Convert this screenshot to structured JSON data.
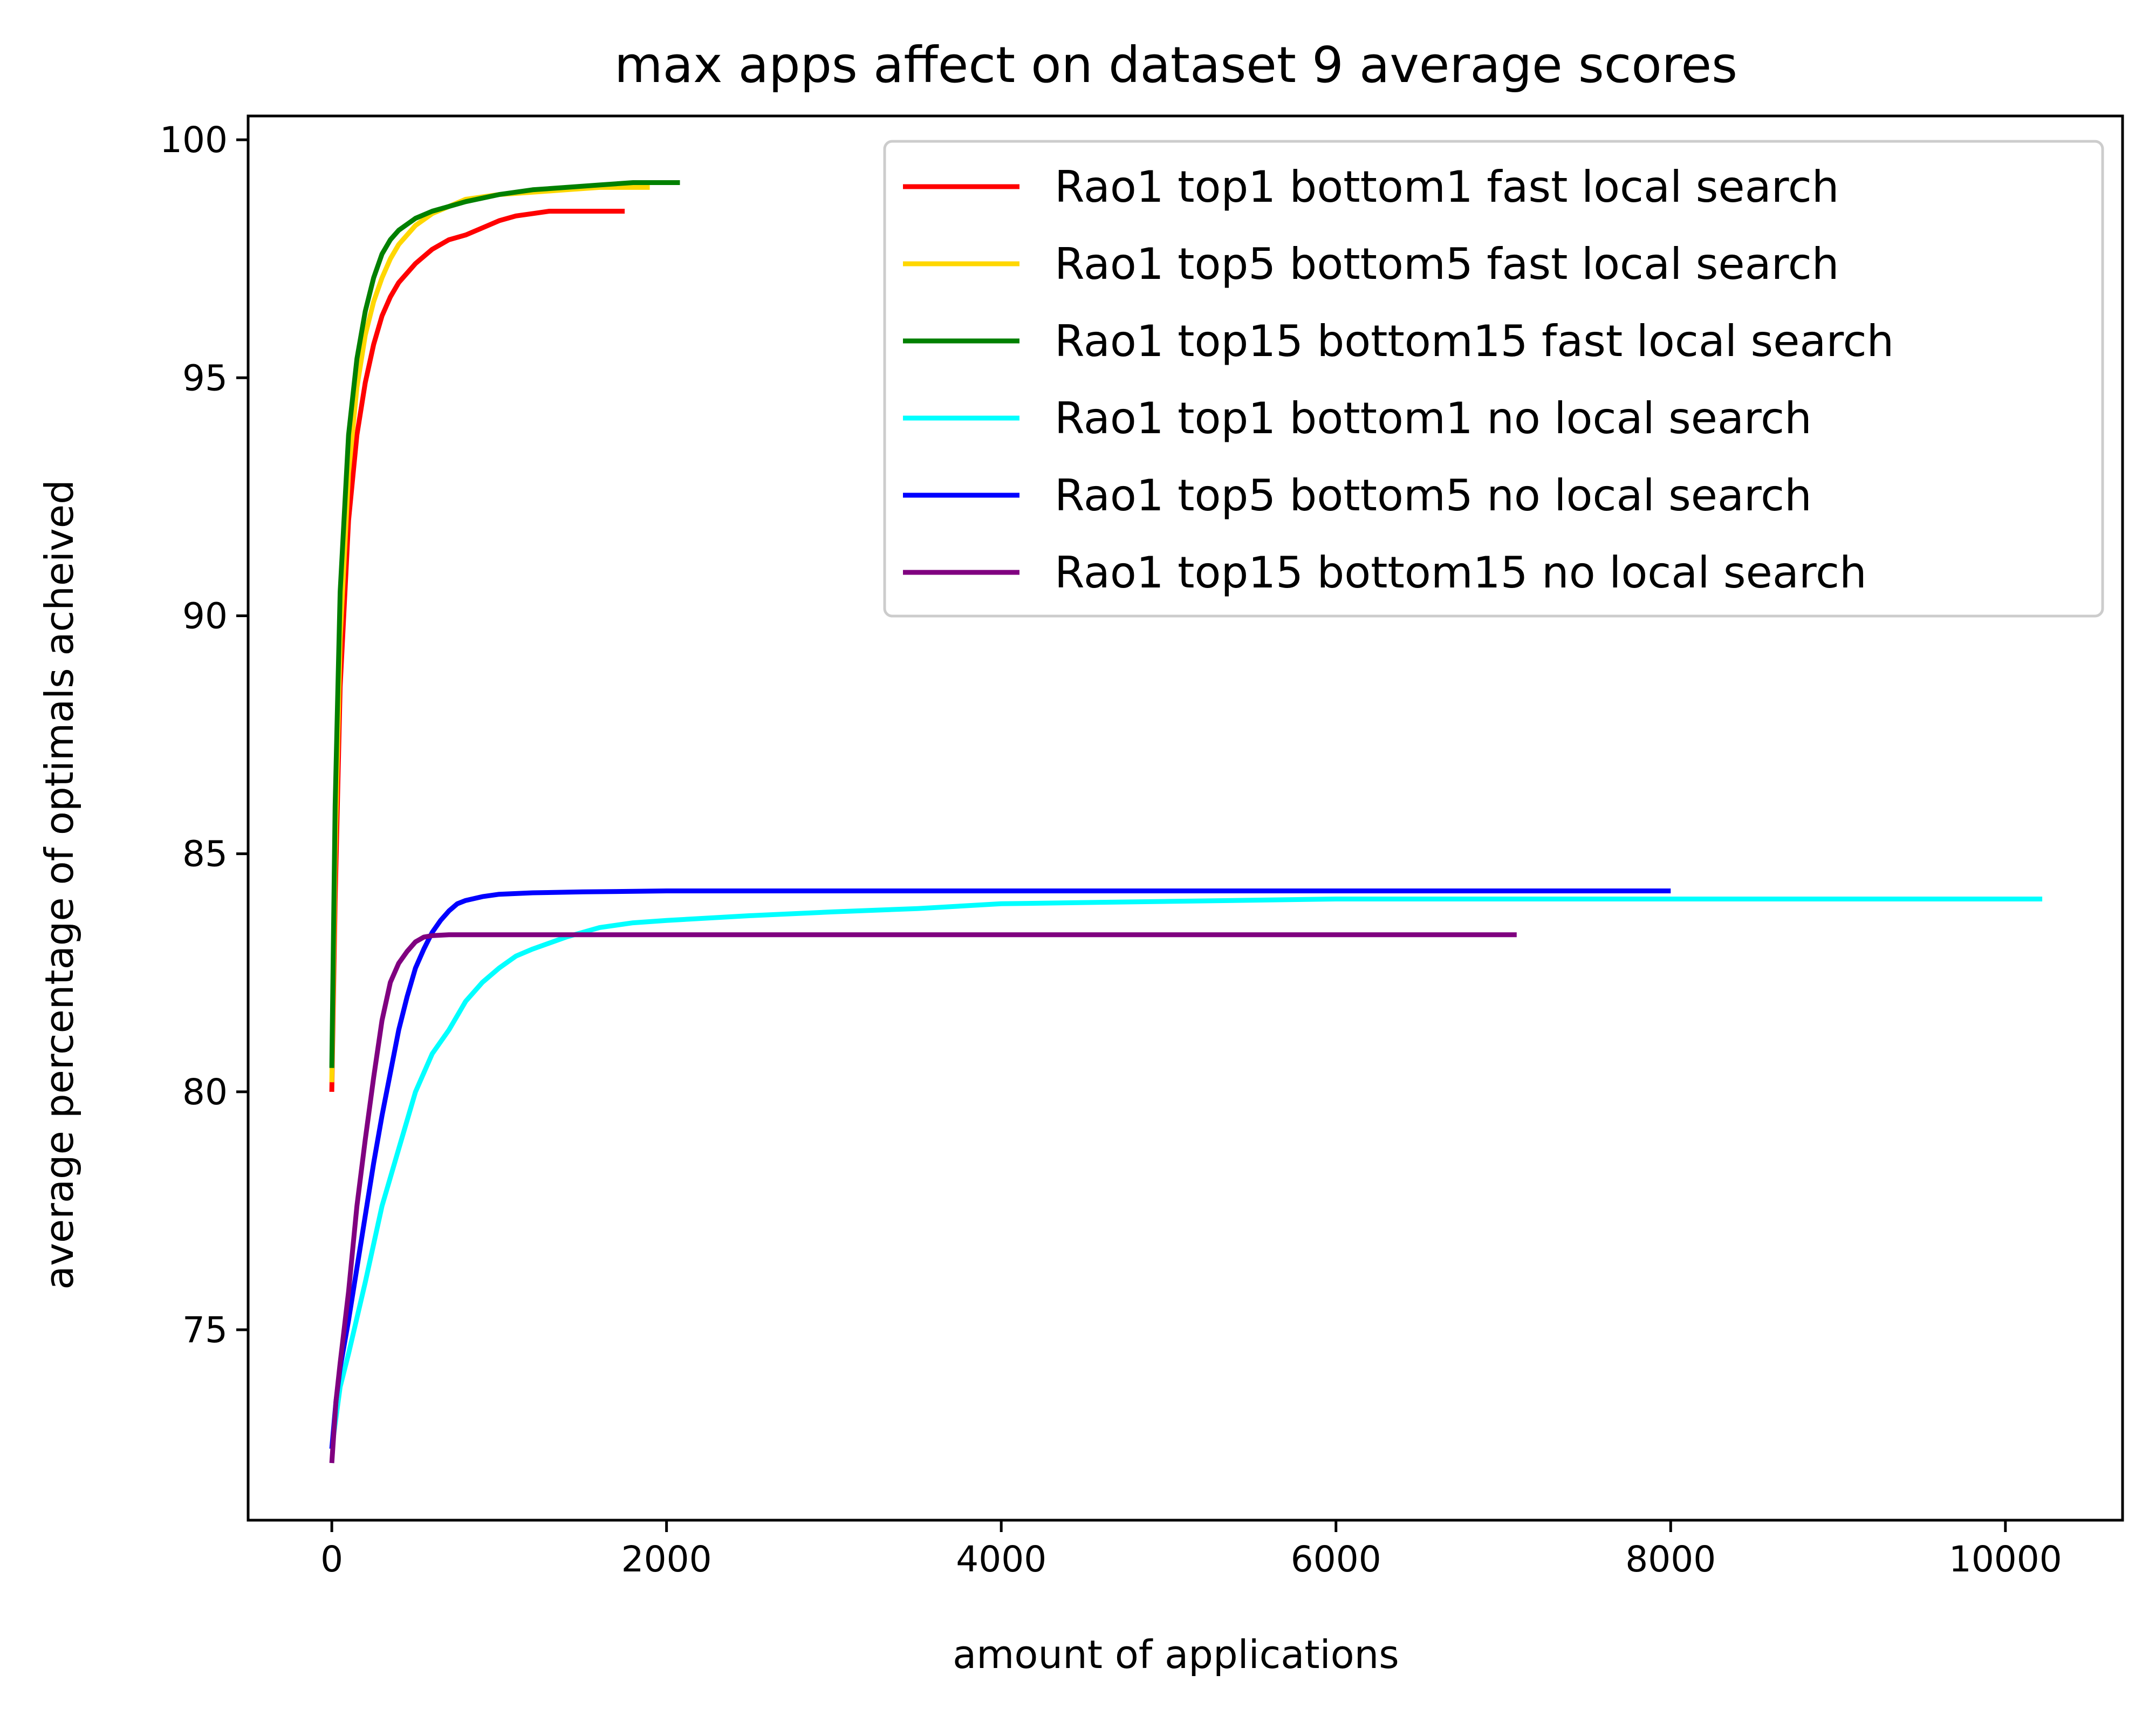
{
  "chart_data": {
    "type": "line",
    "title": "max apps affect on dataset 9 average scores",
    "xlabel": "amount of applications",
    "ylabel": "average percentage of optimals acheived",
    "xlim": [
      -500,
      10700
    ],
    "ylim": [
      71,
      100.5
    ],
    "xticks": [
      0,
      2000,
      4000,
      6000,
      8000,
      10000
    ],
    "xtick_labels": [
      "0",
      "2000",
      "4000",
      "6000",
      "8000",
      "10000"
    ],
    "yticks": [
      75,
      80,
      85,
      90,
      95,
      100
    ],
    "ytick_labels": [
      "75",
      "80",
      "85",
      "90",
      "95",
      "100"
    ],
    "grid": false,
    "legend_position": "upper right",
    "series": [
      {
        "name": "Rao1 top1 bottom1 fast local search",
        "color": "#ff0000",
        "x": [
          0,
          20,
          50,
          100,
          150,
          200,
          250,
          300,
          350,
          400,
          500,
          600,
          700,
          800,
          900,
          1000,
          1100,
          1200,
          1300,
          1500,
          1750
        ],
        "y": [
          80.0,
          84.0,
          88.5,
          92.0,
          93.8,
          94.9,
          95.7,
          96.3,
          96.7,
          97.0,
          97.4,
          97.7,
          97.9,
          98.0,
          98.15,
          98.3,
          98.4,
          98.45,
          98.5,
          98.5,
          98.5
        ]
      },
      {
        "name": "Rao1 top5 bottom5 fast local search",
        "color": "#ffd700",
        "x": [
          0,
          20,
          50,
          100,
          150,
          200,
          250,
          300,
          350,
          400,
          500,
          600,
          700,
          800,
          1000,
          1200,
          1400,
          1600,
          1900
        ],
        "y": [
          80.2,
          85.0,
          89.5,
          93.0,
          94.8,
          95.9,
          96.6,
          97.1,
          97.5,
          97.8,
          98.2,
          98.45,
          98.6,
          98.75,
          98.85,
          98.9,
          98.95,
          99.0,
          99.0
        ]
      },
      {
        "name": "Rao1 top15 bottom15 fast local search",
        "color": "#008000",
        "x": [
          0,
          20,
          50,
          100,
          150,
          200,
          250,
          300,
          350,
          400,
          500,
          600,
          700,
          800,
          1000,
          1200,
          1400,
          1600,
          1800,
          2080
        ],
        "y": [
          80.5,
          86.0,
          90.5,
          93.8,
          95.4,
          96.4,
          97.1,
          97.6,
          97.9,
          98.1,
          98.35,
          98.5,
          98.6,
          98.7,
          98.85,
          98.95,
          99.0,
          99.05,
          99.1,
          99.1
        ]
      },
      {
        "name": "Rao1 top1 bottom1 no local search",
        "color": "#00ffff",
        "x": [
          0,
          50,
          100,
          200,
          300,
          400,
          500,
          600,
          700,
          800,
          900,
          1000,
          1100,
          1200,
          1400,
          1600,
          1800,
          2000,
          2500,
          3000,
          3500,
          4000,
          5000,
          6000,
          7000,
          8000,
          9000,
          10220
        ],
        "y": [
          72.5,
          73.8,
          74.5,
          76.0,
          77.6,
          78.8,
          80.0,
          80.8,
          81.3,
          81.9,
          82.3,
          82.6,
          82.85,
          83.0,
          83.25,
          83.45,
          83.55,
          83.6,
          83.7,
          83.78,
          83.85,
          83.95,
          84.0,
          84.05,
          84.05,
          84.05,
          84.05,
          84.05
        ]
      },
      {
        "name": "Rao1 top5 bottom5 no local search",
        "color": "#0000ff",
        "x": [
          0,
          25,
          50,
          100,
          150,
          200,
          250,
          300,
          350,
          400,
          450,
          500,
          550,
          600,
          650,
          700,
          750,
          800,
          900,
          1000,
          1200,
          1500,
          2000,
          3000,
          4000,
          5000,
          6000,
          7000,
          8000
        ],
        "y": [
          72.5,
          73.5,
          74.2,
          75.2,
          76.3,
          77.4,
          78.5,
          79.5,
          80.4,
          81.3,
          82.0,
          82.6,
          83.0,
          83.35,
          83.6,
          83.8,
          83.95,
          84.02,
          84.1,
          84.15,
          84.18,
          84.2,
          84.22,
          84.22,
          84.22,
          84.22,
          84.22,
          84.22,
          84.22
        ]
      },
      {
        "name": "Rao1 top15 bottom15 no local search",
        "color": "#800080",
        "x": [
          0,
          25,
          50,
          100,
          150,
          200,
          250,
          300,
          350,
          400,
          450,
          500,
          550,
          600,
          700,
          800,
          1000,
          1500,
          2000,
          3000,
          4000,
          5000,
          6000,
          7080
        ],
        "y": [
          72.2,
          73.5,
          74.3,
          75.8,
          77.6,
          79.0,
          80.3,
          81.5,
          82.3,
          82.7,
          82.95,
          83.15,
          83.25,
          83.28,
          83.3,
          83.3,
          83.3,
          83.3,
          83.3,
          83.3,
          83.3,
          83.3,
          83.3,
          83.3
        ]
      }
    ]
  }
}
